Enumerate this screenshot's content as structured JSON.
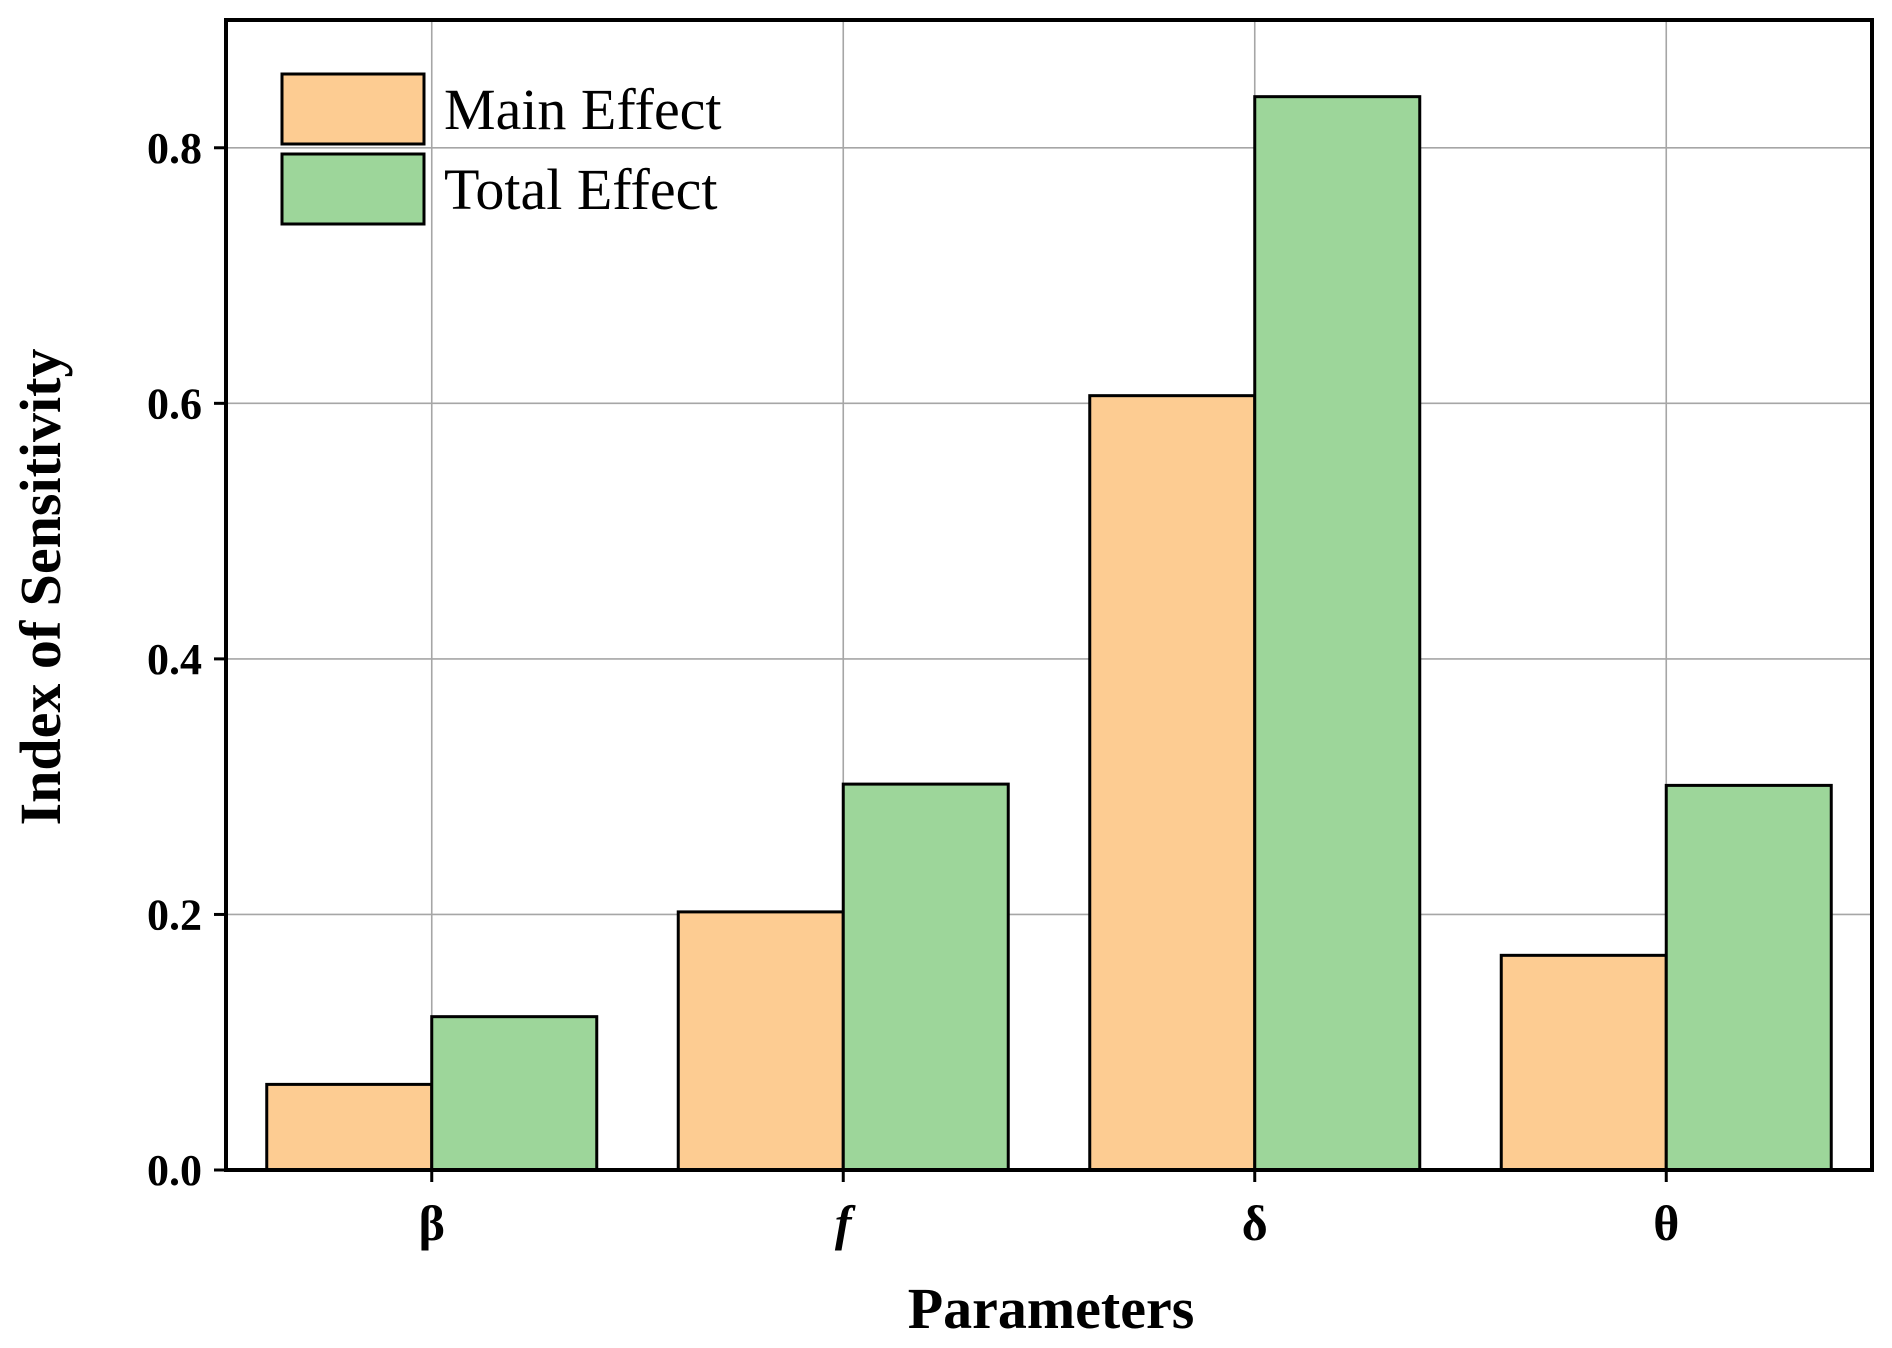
{
  "chart_data": {
    "type": "bar",
    "categories": [
      "β",
      "f",
      "δ",
      "θ"
    ],
    "category_italic": [
      false,
      true,
      false,
      false
    ],
    "series": [
      {
        "name": "Main Effect",
        "values": [
          0.067,
          0.202,
          0.606,
          0.168
        ],
        "color": "#fdcc92"
      },
      {
        "name": "Total Effect",
        "values": [
          0.12,
          0.302,
          0.84,
          0.301
        ],
        "color": "#9dd69a"
      }
    ],
    "xlabel": "Parameters",
    "ylabel": "Index of Sensitivity",
    "ylim": [
      0,
      0.9
    ],
    "yticks": [
      0.0,
      0.2,
      0.4,
      0.6,
      0.8
    ],
    "ytick_labels": [
      "0.0",
      "0.2",
      "0.4",
      "0.6",
      "0.8"
    ],
    "grid": true,
    "legend_position": "top-left"
  }
}
